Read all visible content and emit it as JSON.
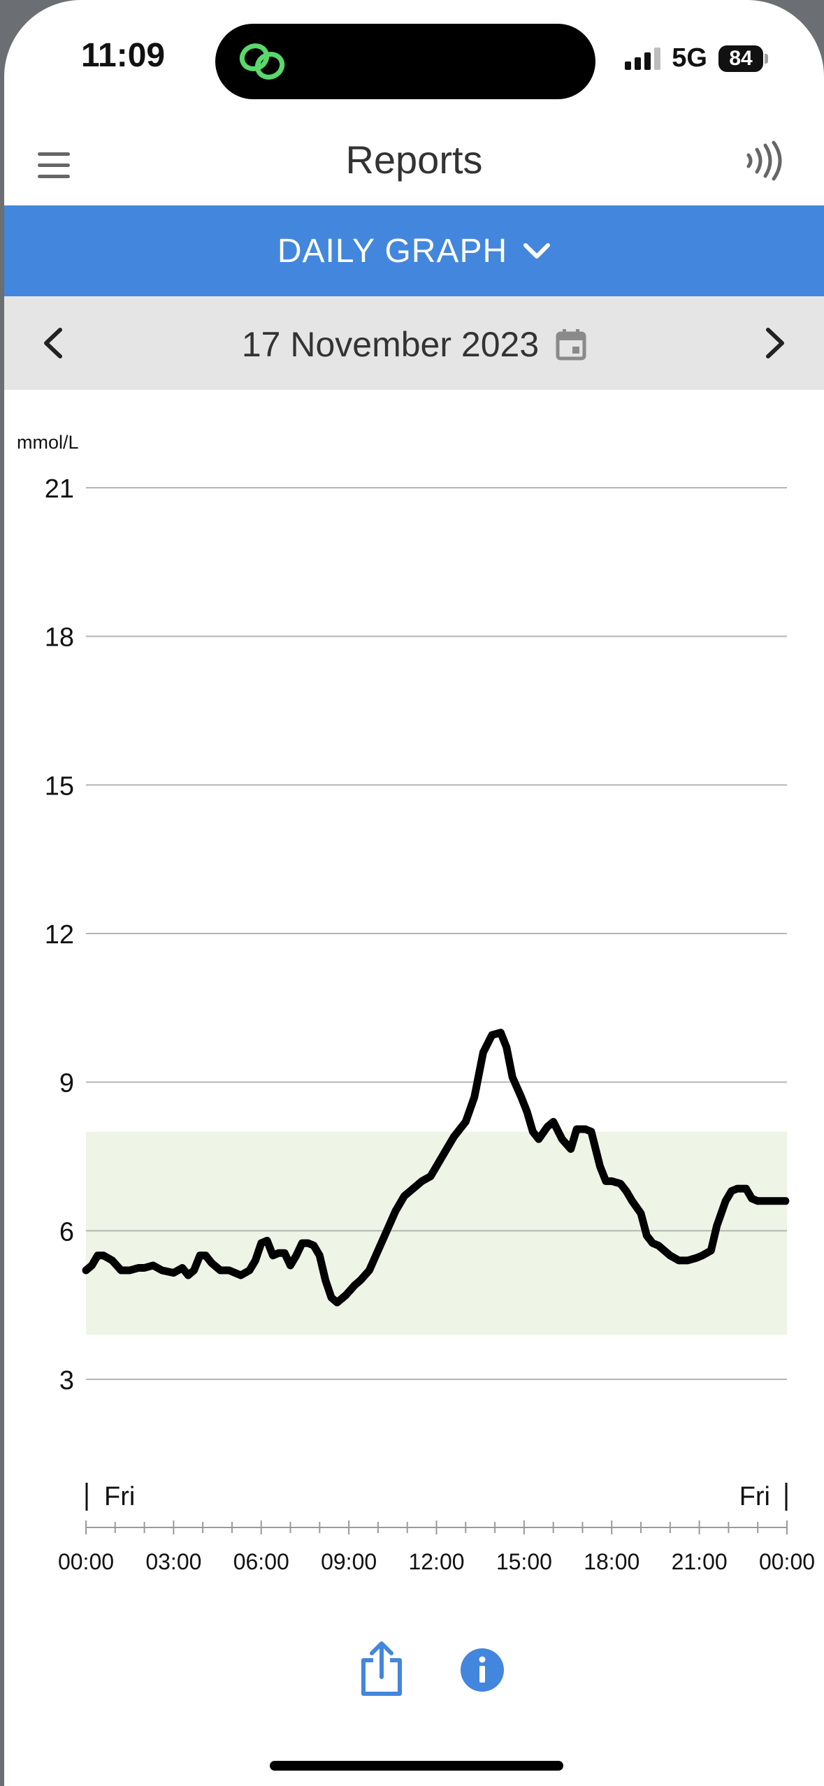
{
  "status_bar": {
    "time": "11:09",
    "network": "5G",
    "battery": "84"
  },
  "header": {
    "title": "Reports",
    "menu_icon": "hamburger-menu-icon",
    "scan_icon": "nfc-scan-icon"
  },
  "report_selector": {
    "label": "DAILY GRAPH"
  },
  "date_nav": {
    "date": "17 November 2023"
  },
  "chart_data": {
    "type": "line",
    "ylabel": "mmol/L",
    "yticks": [
      "21",
      "18",
      "15",
      "12",
      "9",
      "6",
      "3"
    ],
    "ylim": [
      3,
      21
    ],
    "xlim": [
      0,
      24
    ],
    "xticks": [
      "00:00",
      "03:00",
      "06:00",
      "09:00",
      "12:00",
      "15:00",
      "18:00",
      "21:00",
      "00:00"
    ],
    "day_labels": {
      "start": "Fri",
      "end": "Fri"
    },
    "target_range": [
      3.9,
      8.0
    ],
    "target_color": "#eef4e6",
    "line_color": "#000000",
    "grid": true,
    "series": [
      {
        "x": [
          0,
          0.2,
          0.4,
          0.6,
          0.9,
          1.2,
          1.5,
          1.8,
          2.0,
          2.3,
          2.6,
          3.0,
          3.3,
          3.5,
          3.7,
          3.9,
          4.1,
          4.3,
          4.6,
          4.9,
          5.1,
          5.3,
          5.6,
          5.8,
          6.0,
          6.2,
          6.4,
          6.6,
          6.8,
          7.0,
          7.2,
          7.4,
          7.6,
          7.8,
          8.0,
          8.2,
          8.4,
          8.6,
          8.9,
          9.2,
          9.4,
          9.7,
          10.0,
          10.3,
          10.6,
          10.9,
          11.2,
          11.5,
          11.8,
          12.0,
          12.3,
          12.6,
          13.0,
          13.3,
          13.6,
          13.9,
          14.2,
          14.4,
          14.6,
          14.9,
          15.1,
          15.3,
          15.5,
          15.8,
          16.0,
          16.3,
          16.6,
          16.8,
          17.1,
          17.3,
          17.6,
          17.8,
          18.0,
          18.3,
          18.5,
          18.7,
          19.0,
          19.2,
          19.4,
          19.6,
          20.0,
          20.3,
          20.6,
          20.9,
          21.1,
          21.4,
          21.6,
          21.9,
          22.1,
          22.3,
          22.6,
          22.8,
          23.0,
          23.2,
          23.4,
          23.6,
          23.8,
          23.95
        ],
        "y": [
          5.2,
          5.3,
          5.5,
          5.5,
          5.4,
          5.2,
          5.2,
          5.25,
          5.25,
          5.3,
          5.2,
          5.15,
          5.25,
          5.1,
          5.2,
          5.5,
          5.5,
          5.35,
          5.2,
          5.2,
          5.15,
          5.1,
          5.2,
          5.4,
          5.75,
          5.8,
          5.5,
          5.55,
          5.55,
          5.3,
          5.5,
          5.75,
          5.75,
          5.7,
          5.5,
          5.0,
          4.65,
          4.55,
          4.7,
          4.9,
          5.0,
          5.2,
          5.6,
          6.0,
          6.4,
          6.7,
          6.85,
          7.0,
          7.1,
          7.3,
          7.6,
          7.9,
          8.2,
          8.7,
          9.6,
          9.95,
          10.0,
          9.7,
          9.1,
          8.7,
          8.4,
          8.0,
          7.85,
          8.1,
          8.2,
          7.85,
          7.65,
          8.05,
          8.05,
          8.0,
          7.3,
          7.0,
          7.0,
          6.95,
          6.8,
          6.6,
          6.35,
          5.9,
          5.75,
          5.7,
          5.5,
          5.4,
          5.4,
          5.45,
          5.5,
          5.6,
          6.1,
          6.6,
          6.8,
          6.85,
          6.85,
          6.65,
          6.6,
          6.6,
          6.6,
          6.6,
          6.6,
          6.6
        ]
      }
    ]
  }
}
